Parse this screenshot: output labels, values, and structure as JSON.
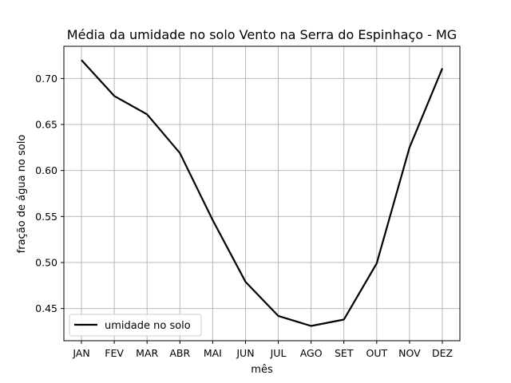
{
  "chart_data": {
    "type": "line",
    "title": "Média da umidade no solo Vento na Serra do Espinhaço - MG",
    "xlabel": "mês",
    "ylabel": "fração de água no solo",
    "categories": [
      "JAN",
      "FEV",
      "MAR",
      "ABR",
      "MAI",
      "JUN",
      "JUL",
      "AGO",
      "SET",
      "OUT",
      "NOV",
      "DEZ"
    ],
    "series": [
      {
        "name": "umidade no solo",
        "values": [
          0.72,
          0.681,
          0.661,
          0.619,
          0.546,
          0.479,
          0.442,
          0.431,
          0.438,
          0.499,
          0.625,
          0.711
        ],
        "color": "#000000"
      }
    ],
    "ylim": [
      0.415,
      0.735
    ],
    "yticks": [
      0.45,
      0.5,
      0.55,
      0.6,
      0.65,
      0.7
    ],
    "ytick_labels": [
      "0.45",
      "0.50",
      "0.55",
      "0.60",
      "0.65",
      "0.70"
    ],
    "grid": true,
    "grid_color": "#b0b0b0",
    "legend_position": "lower left"
  }
}
